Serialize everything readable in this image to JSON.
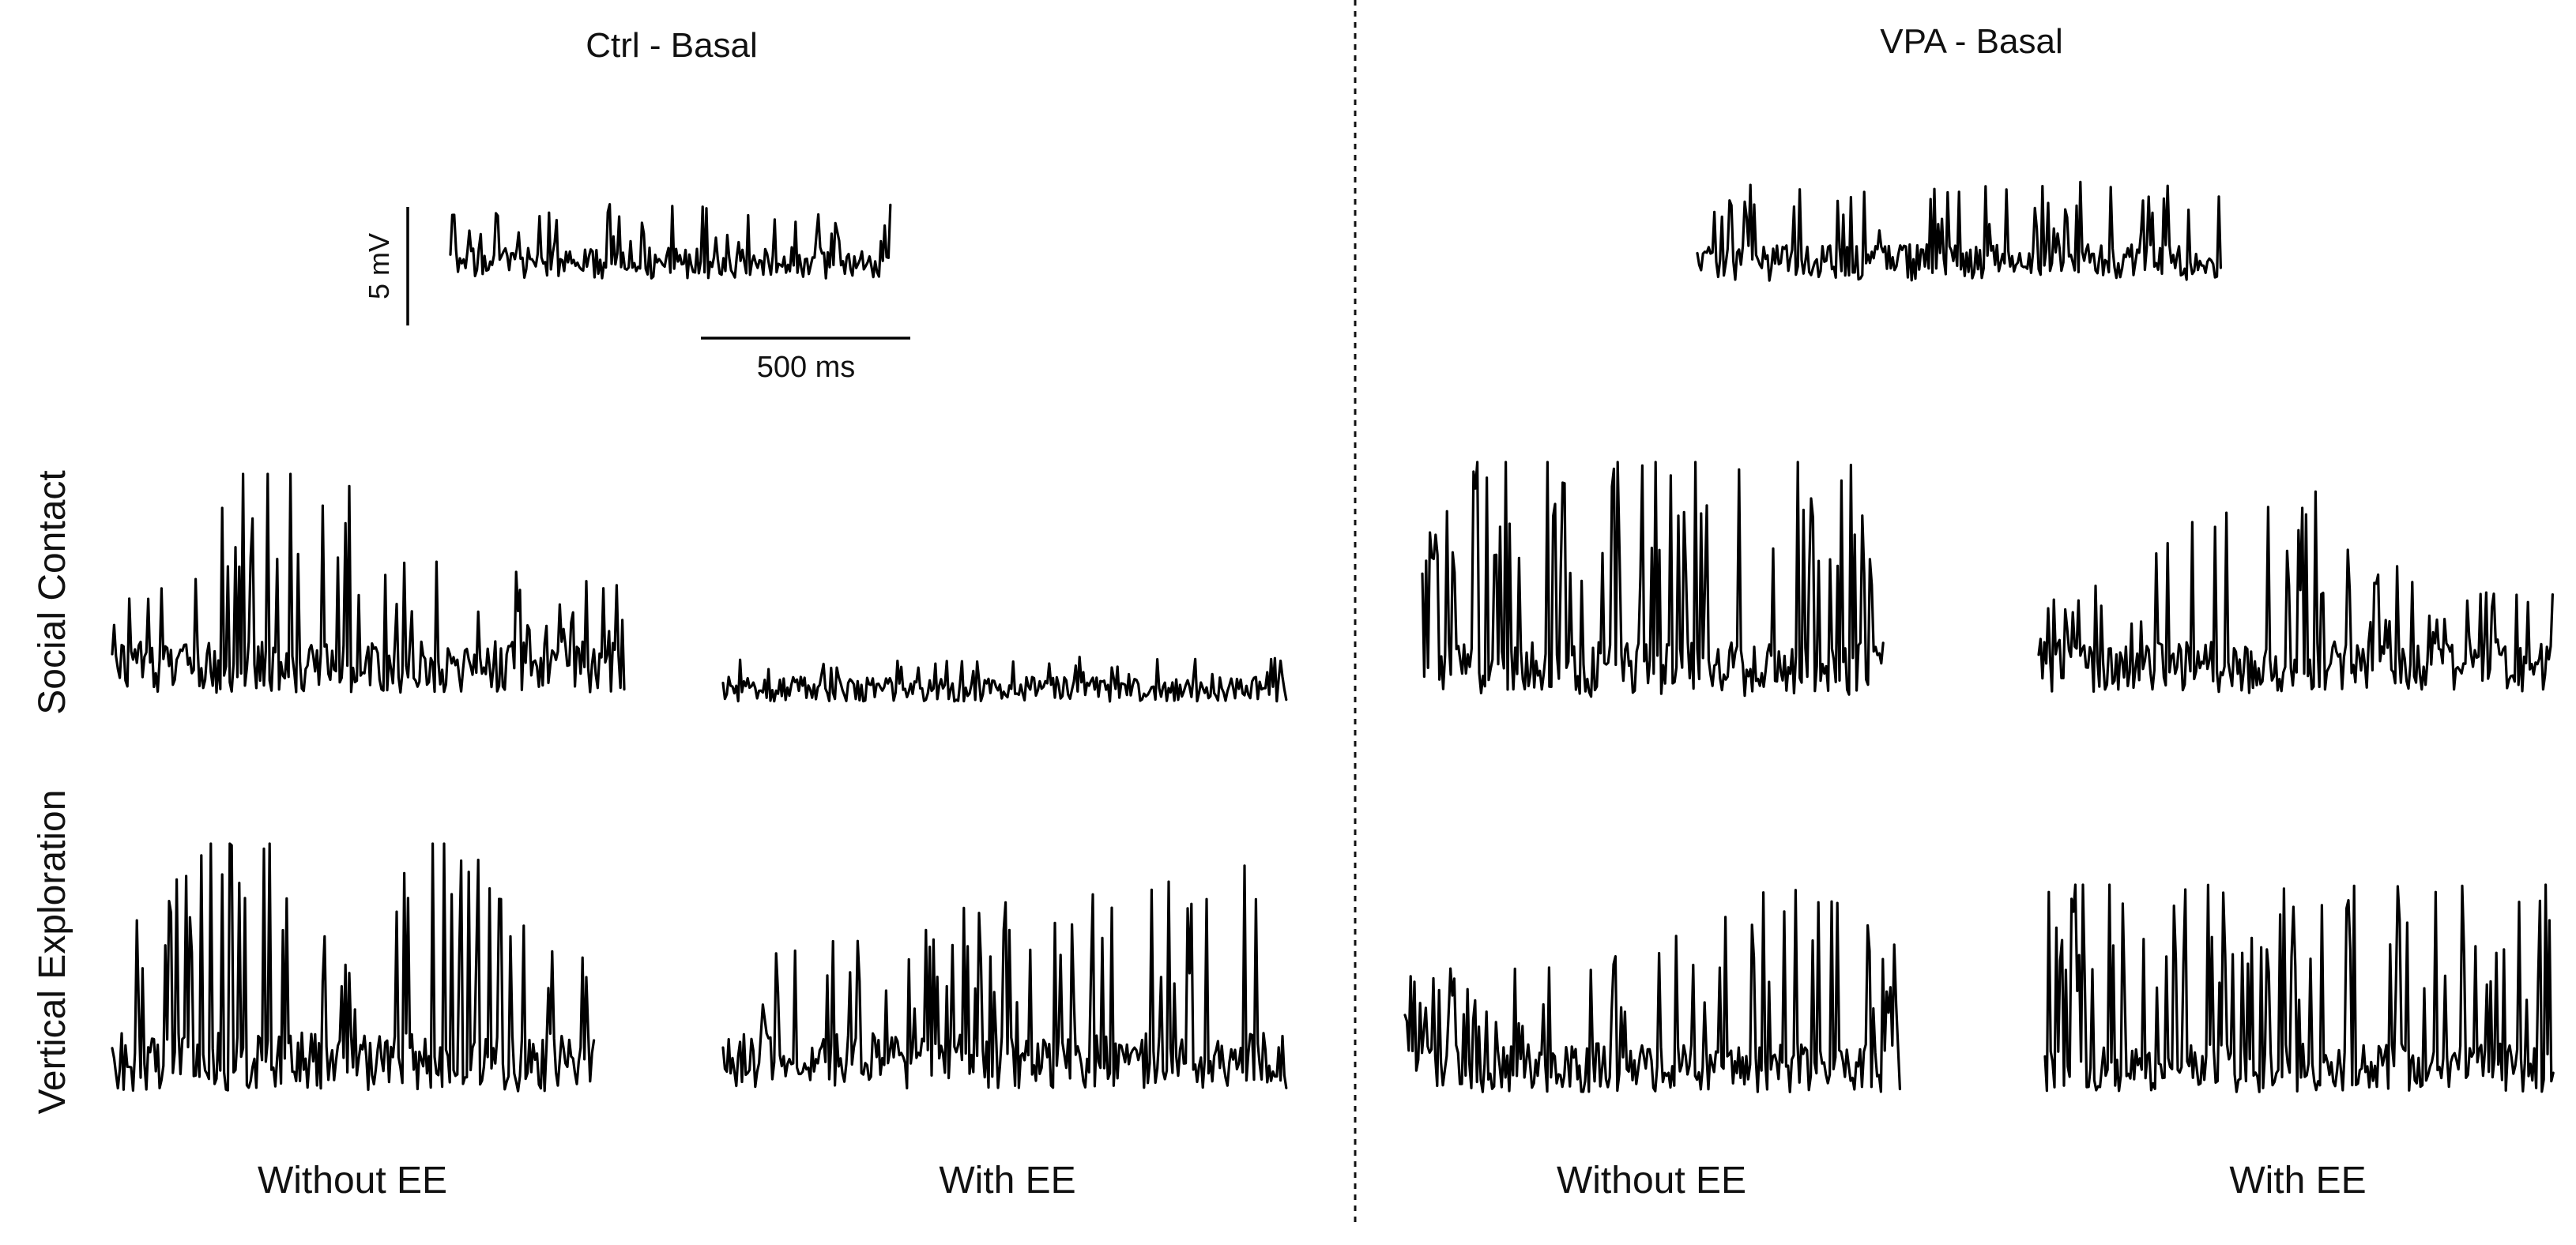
{
  "panels": {
    "ctrl": {
      "title": "Ctrl - Basal"
    },
    "vpa": {
      "title": "VPA - Basal"
    }
  },
  "rows": {
    "social_contact": "Social Contact",
    "vertical_exploration": "Vertical Exploration"
  },
  "columns": {
    "ctrl_without": "Without EE",
    "ctrl_with": "With EE",
    "vpa_without": "Without EE",
    "vpa_with": "With EE"
  },
  "scale_bars": {
    "voltage": "5 mV",
    "time": "500 ms"
  },
  "traces": [
    {
      "name": "ctrl-basal-trace",
      "panel": "Ctrl - Basal",
      "condition": "Basal",
      "amplitude": 0.55,
      "density": 0.42,
      "burst": "flat",
      "seed": 11
    },
    {
      "name": "vpa-basal-trace",
      "panel": "VPA - Basal",
      "condition": "Basal",
      "amplitude": 0.65,
      "density": 0.4,
      "burst": "flat",
      "seed": 23
    },
    {
      "name": "ctrl-social-without-ee-trace",
      "panel": "Ctrl - Basal",
      "row": "Social Contact",
      "condition": "Without EE",
      "amplitude": 0.95,
      "density": 0.55,
      "burst": "early-hump",
      "seed": 37
    },
    {
      "name": "ctrl-social-with-ee-trace",
      "panel": "Ctrl - Basal",
      "row": "Social Contact",
      "condition": "With EE",
      "amplitude": 0.38,
      "density": 0.35,
      "burst": "flat",
      "seed": 41
    },
    {
      "name": "vpa-social-without-ee-trace",
      "panel": "VPA - Basal",
      "row": "Social Contact",
      "condition": "Without EE",
      "amplitude": 1.0,
      "density": 0.75,
      "burst": "flat-high",
      "seed": 53
    },
    {
      "name": "vpa-social-with-ee-trace",
      "panel": "VPA - Basal",
      "row": "Social Contact",
      "condition": "With EE",
      "amplitude": 0.9,
      "density": 0.5,
      "burst": "center-hump",
      "seed": 67
    },
    {
      "name": "ctrl-vertical-without-ee-trace",
      "panel": "Ctrl - Basal",
      "row": "Vertical Exploration",
      "condition": "Without EE",
      "amplitude": 1.0,
      "density": 0.7,
      "burst": "two-humps",
      "seed": 71
    },
    {
      "name": "ctrl-vertical-with-ee-trace",
      "panel": "Ctrl - Basal",
      "row": "Vertical Exploration",
      "condition": "With EE",
      "amplitude": 0.85,
      "density": 0.55,
      "burst": "rising",
      "seed": 83
    },
    {
      "name": "vpa-vertical-without-ee-trace",
      "panel": "VPA - Basal",
      "row": "Vertical Exploration",
      "condition": "Without EE",
      "amplitude": 0.85,
      "density": 0.55,
      "burst": "late-hump",
      "seed": 97
    },
    {
      "name": "vpa-vertical-with-ee-trace",
      "panel": "VPA - Basal",
      "row": "Vertical Exploration",
      "condition": "With EE",
      "amplitude": 0.95,
      "density": 0.7,
      "burst": "flat-high",
      "seed": 101
    }
  ],
  "colors": {
    "trace": "#000000",
    "text": "#111111",
    "background": "#ffffff",
    "divider": "#111111"
  }
}
